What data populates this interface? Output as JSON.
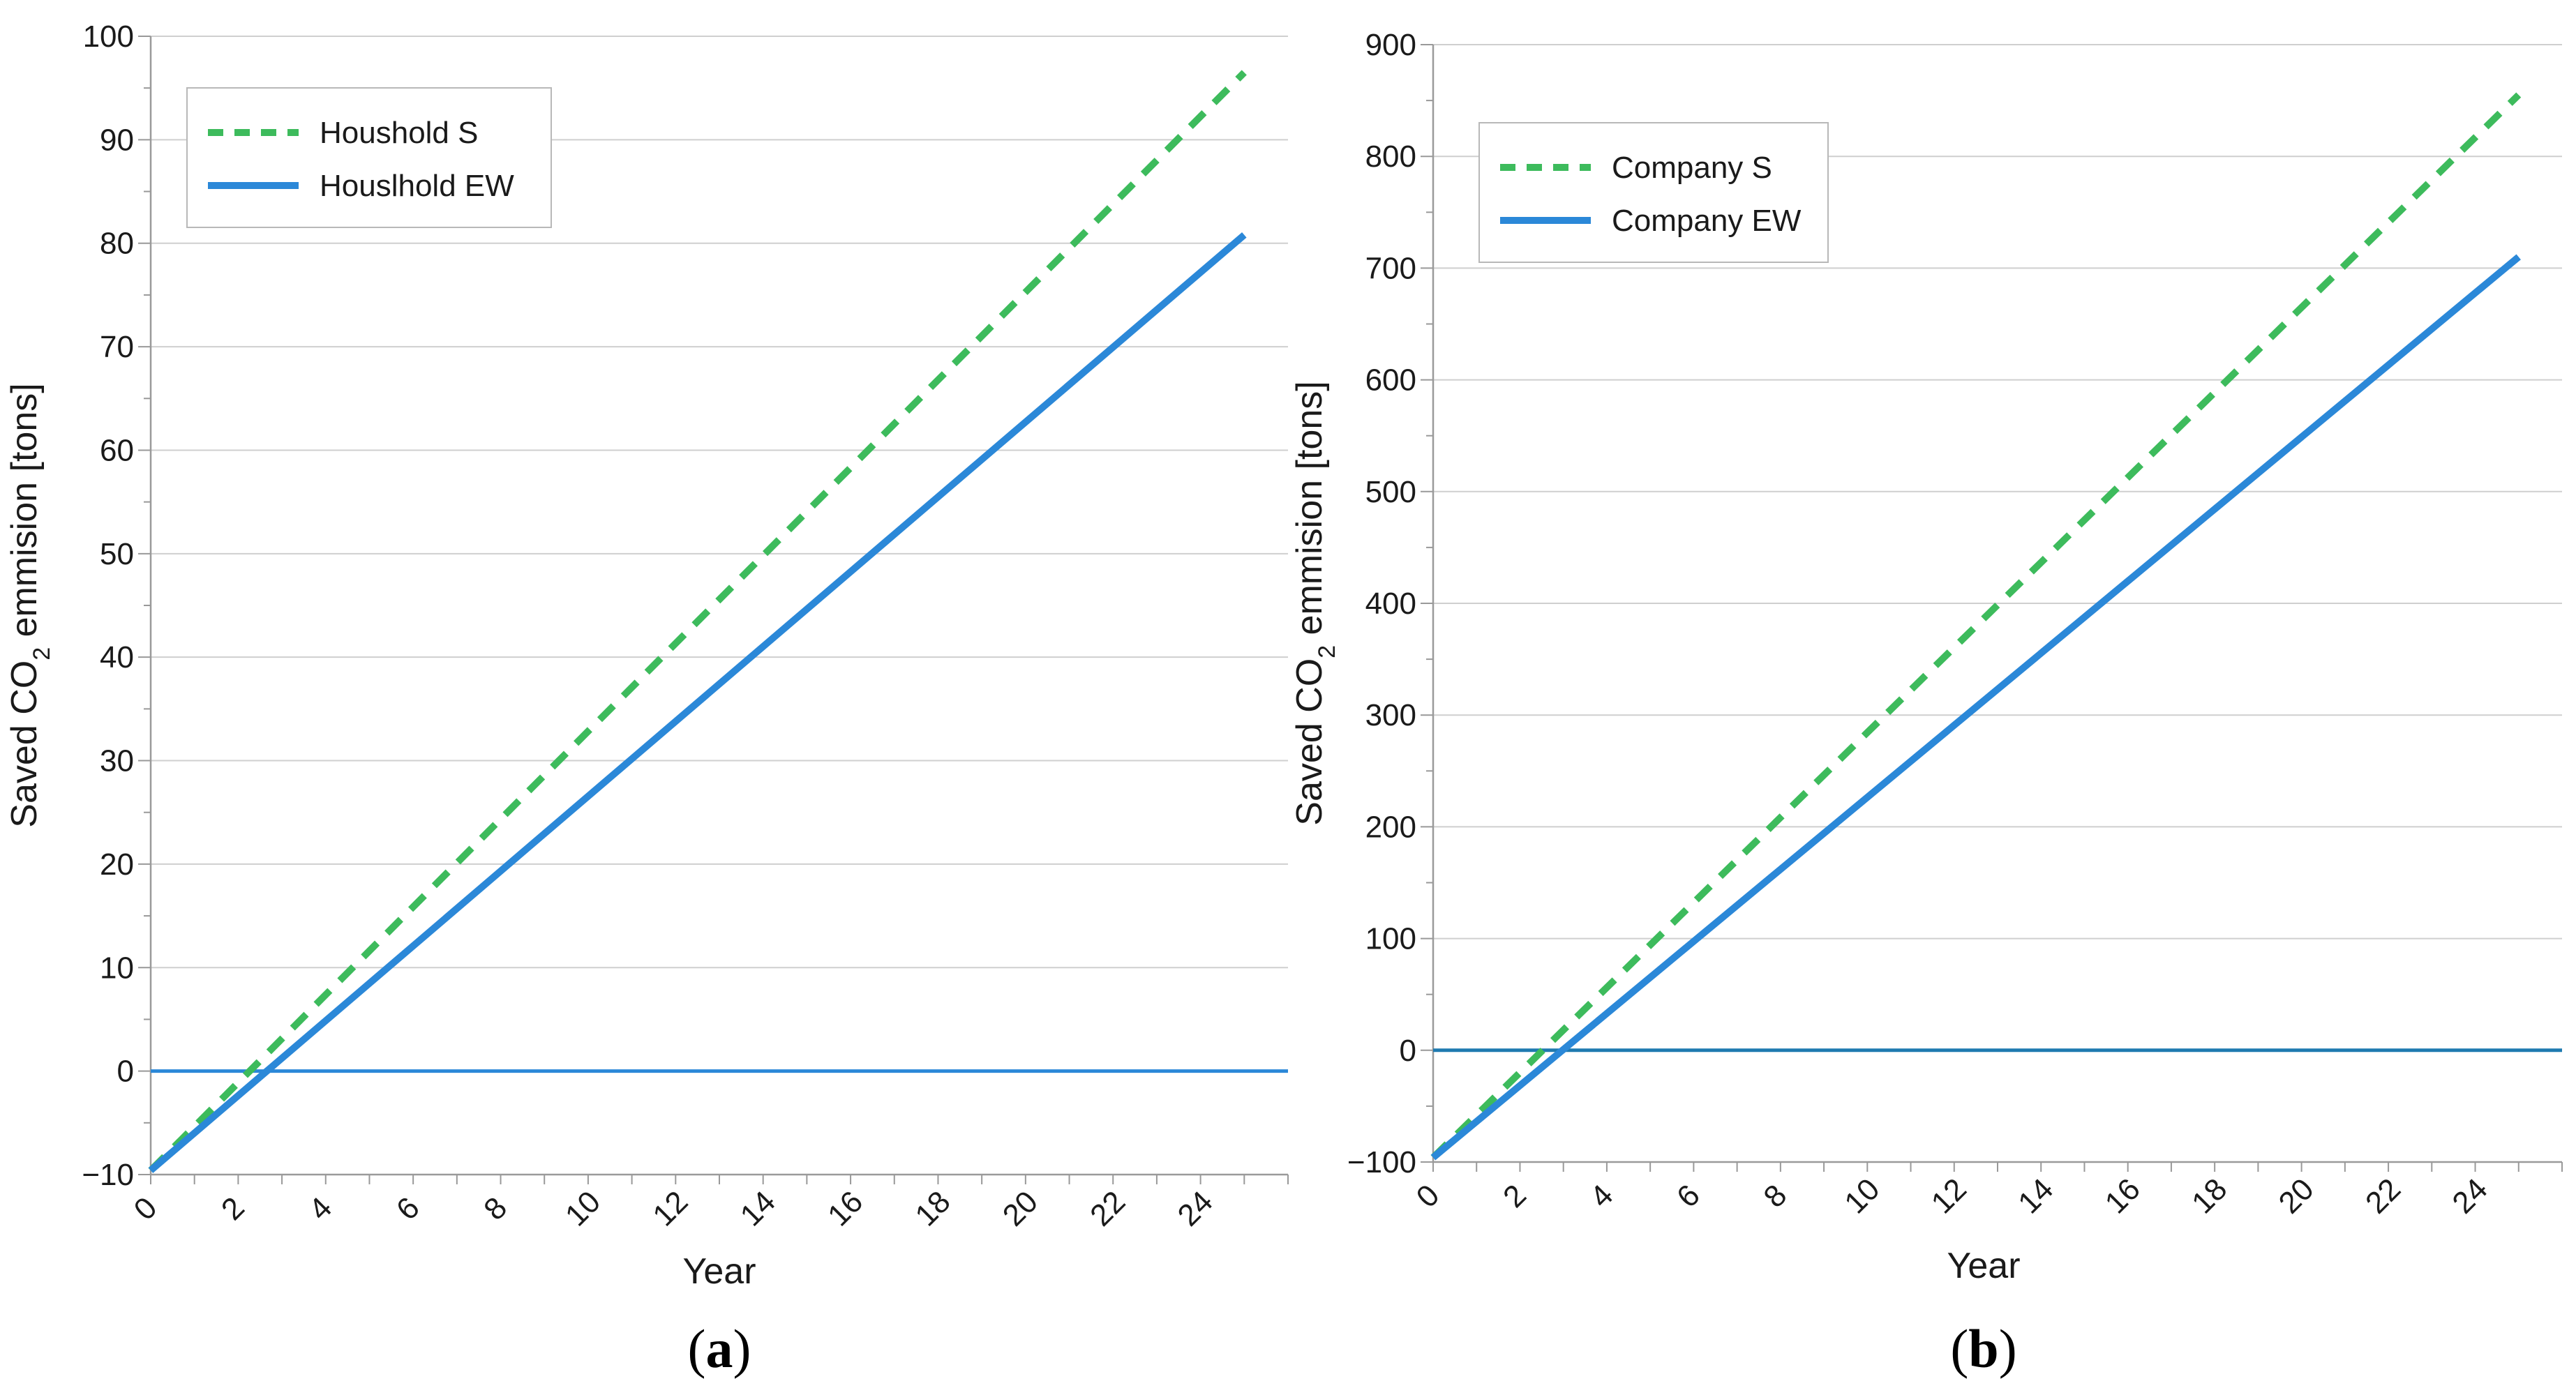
{
  "chart_data": [
    {
      "type": "line",
      "panel_label": "a",
      "xlabel": "Year",
      "ylabel_parts": [
        "Saved CO",
        "2",
        " emmision [tons]"
      ],
      "xlim": [
        0,
        26
      ],
      "ylim": [
        -10,
        100
      ],
      "x_ticks": [
        0,
        2,
        4,
        6,
        8,
        10,
        12,
        14,
        16,
        18,
        20,
        22,
        24
      ],
      "y_ticks": [
        -10,
        0,
        10,
        20,
        30,
        40,
        50,
        60,
        70,
        80,
        90,
        100
      ],
      "y_tick_labels": [
        "−10",
        "0",
        "10",
        "20",
        "30",
        "40",
        "50",
        "60",
        "70",
        "80",
        "90",
        "100"
      ],
      "grid": true,
      "legend_position": "top-left",
      "baseline": 0,
      "series": [
        {
          "name": "Houshold S",
          "style": "dashed",
          "color": "#3dbb5c",
          "x": [
            0,
            25
          ],
          "y": [
            -9.6,
            96.5
          ]
        },
        {
          "name": "Houslhold EW",
          "style": "solid",
          "color": "#2b88d8",
          "x": [
            0,
            25
          ],
          "y": [
            -9.6,
            80.8
          ]
        }
      ]
    },
    {
      "type": "line",
      "panel_label": "b",
      "xlabel": "Year",
      "ylabel_parts": [
        "Saved CO",
        "2",
        " emmision [tons]"
      ],
      "xlim": [
        0,
        26
      ],
      "ylim": [
        -100,
        900
      ],
      "x_ticks": [
        0,
        2,
        4,
        6,
        8,
        10,
        12,
        14,
        16,
        18,
        20,
        22,
        24
      ],
      "y_ticks": [
        -100,
        0,
        100,
        200,
        300,
        400,
        500,
        600,
        700,
        800,
        900
      ],
      "y_tick_labels": [
        "−100",
        "0",
        "100",
        "200",
        "300",
        "400",
        "500",
        "600",
        "700",
        "800",
        "900"
      ],
      "grid": true,
      "legend_position": "top-left",
      "baseline": 0,
      "series": [
        {
          "name": "Company S",
          "style": "dashed",
          "color": "#3dbb5c",
          "x": [
            0,
            25
          ],
          "y": [
            -96,
            855
          ]
        },
        {
          "name": "Company EW",
          "style": "solid",
          "color": "#2b88d8",
          "x": [
            0,
            25
          ],
          "y": [
            -96,
            710
          ]
        }
      ]
    }
  ]
}
